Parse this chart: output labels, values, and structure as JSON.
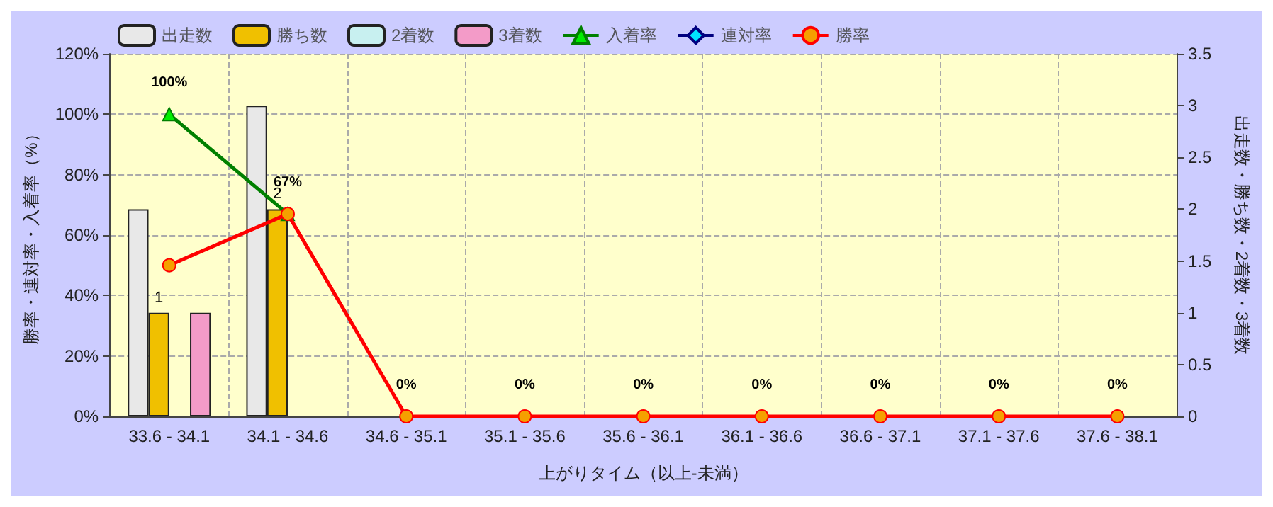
{
  "chart_data": {
    "type": "bar",
    "xlabel": "上がりタイム（以上-未満）",
    "ylabel": "勝率・連対率・入着率（%）",
    "y2label": "出走数・勝ち数・2着数・3着数",
    "categories": [
      "33.6 - 34.1",
      "34.1 - 34.6",
      "34.6 - 35.1",
      "35.1 - 35.6",
      "35.6 - 36.1",
      "36.1 - 36.6",
      "36.6 - 37.1",
      "37.1 - 37.6",
      "37.6 - 38.1"
    ],
    "series": [
      {
        "name": "出走数",
        "axis": "y2",
        "color": "#e8e8e8",
        "values": [
          2,
          3,
          0,
          0,
          0,
          0,
          0,
          0,
          0
        ]
      },
      {
        "name": "勝ち数",
        "axis": "y2",
        "color": "#f0c000",
        "values": [
          1,
          2,
          0,
          0,
          0,
          0,
          0,
          0,
          0
        ],
        "value_labels": [
          "1",
          "2",
          null,
          null,
          null,
          null,
          null,
          null,
          null
        ]
      },
      {
        "name": "2着数",
        "axis": "y2",
        "color": "#c8f0f0",
        "values": [
          0,
          0,
          0,
          0,
          0,
          0,
          0,
          0,
          0
        ]
      },
      {
        "name": "3着数",
        "axis": "y2",
        "color": "#f39bc8",
        "values": [
          1,
          0,
          0,
          0,
          0,
          0,
          0,
          0,
          0
        ]
      },
      {
        "name": "入着率",
        "type": "line",
        "color": "#008000",
        "marker": "triangle",
        "values": [
          100,
          67,
          null,
          null,
          null,
          null,
          null,
          null,
          null
        ],
        "value_labels": [
          "100%",
          "67%",
          null,
          null,
          null,
          null,
          null,
          null,
          null
        ]
      },
      {
        "name": "連対率",
        "type": "line",
        "color": "#000080",
        "marker": "diamond",
        "values": [
          null,
          null,
          null,
          null,
          null,
          null,
          null,
          null,
          null
        ]
      },
      {
        "name": "勝率",
        "type": "line",
        "color": "#ff0000",
        "marker": "circle",
        "values": [
          50,
          67,
          0,
          0,
          0,
          0,
          0,
          0,
          0
        ],
        "value_labels": [
          null,
          null,
          "0%",
          "0%",
          "0%",
          "0%",
          "0%",
          "0%",
          "0%"
        ]
      }
    ],
    "ylim": [
      0,
      120
    ],
    "yticks": [
      {
        "value": 0,
        "label": "0%"
      },
      {
        "value": 20,
        "label": "20%"
      },
      {
        "value": 40,
        "label": "40%"
      },
      {
        "value": 60,
        "label": "60%"
      },
      {
        "value": 80,
        "label": "80%"
      },
      {
        "value": 100,
        "label": "100%"
      },
      {
        "value": 120,
        "label": "120%"
      }
    ],
    "y2lim": [
      0,
      3.5
    ],
    "y2ticks": [
      0,
      0.5,
      1,
      1.5,
      2,
      2.5,
      3,
      3.5
    ],
    "grid": true,
    "legend": "top left"
  }
}
